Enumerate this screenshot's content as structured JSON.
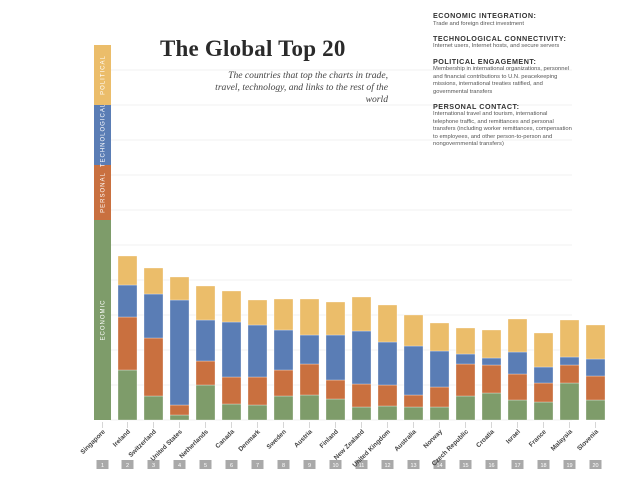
{
  "title": "The Global Top 20",
  "subtitle": "The countries that top the charts in trade, travel, technology, and links to the rest of the world",
  "legend": [
    {
      "heading": "ECONOMIC INTEGRATION:",
      "text": "Trade and foreign direct investment"
    },
    {
      "heading": "TECHNOLOGICAL CONNECTIVITY:",
      "text": "Internet users, Internet hosts, and secure servers"
    },
    {
      "heading": "POLITICAL ENGAGEMENT:",
      "text": "Membership in international organizations, personnel and financial contributions to U.N. peacekeeping missions, international treaties ratified, and governmental transfers"
    },
    {
      "heading": "PERSONAL CONTACT:",
      "text": "International travel and tourism, international telephone traffic, and remittances and personal transfers (including worker remittances, compensation to employees, and other person-to-person and nongovernmental transfers)"
    }
  ],
  "axis_labels": [
    "ECONOMIC",
    "PERSONAL",
    "TECHNOLOGICAL",
    "POLITICAL"
  ],
  "colors": {
    "economic": "#7e9c6a",
    "personal": "#c9703f",
    "technological": "#5a7db5",
    "political": "#ebbd6a"
  },
  "chart_data": {
    "type": "bar",
    "stacked": true,
    "title": "The Global Top 20",
    "categories": [
      "Singapore",
      "Ireland",
      "Switzerland",
      "United States",
      "Netherlands",
      "Canada",
      "Denmark",
      "Sweden",
      "Austria",
      "Finland",
      "New Zealand",
      "United Kingdom",
      "Australia",
      "Norway",
      "Czech Republic",
      "Croatia",
      "Israel",
      "France",
      "Malaysia",
      "Slovenia"
    ],
    "ranks": [
      "1",
      "2",
      "3",
      "4",
      "5",
      "6",
      "7",
      "8",
      "9",
      "10",
      "11",
      "12",
      "13",
      "14",
      "15",
      "16",
      "17",
      "18",
      "19",
      "20"
    ],
    "series": [
      {
        "name": "ECONOMIC",
        "values": [
          200,
          50,
          24,
          5,
          35,
          16,
          15,
          24,
          25,
          21,
          13,
          14,
          13,
          13,
          24,
          27,
          20,
          18,
          37,
          20
        ]
      },
      {
        "name": "PERSONAL",
        "values": [
          55,
          53,
          58,
          10,
          24,
          27,
          28,
          26,
          31,
          19,
          23,
          21,
          12,
          20,
          32,
          28,
          26,
          19,
          18,
          24
        ]
      },
      {
        "name": "TECHNOLOGICAL",
        "values": [
          60,
          32,
          44,
          105,
          41,
          55,
          52,
          40,
          29,
          45,
          53,
          43,
          49,
          36,
          10,
          7,
          22,
          16,
          8,
          17
        ]
      },
      {
        "name": "POLITICAL",
        "values": [
          60,
          29,
          26,
          23,
          34,
          31,
          25,
          31,
          36,
          33,
          34,
          37,
          31,
          28,
          26,
          28,
          33,
          34,
          37,
          34
        ]
      }
    ],
    "ylim": [
      0,
      375
    ],
    "grid": true
  }
}
